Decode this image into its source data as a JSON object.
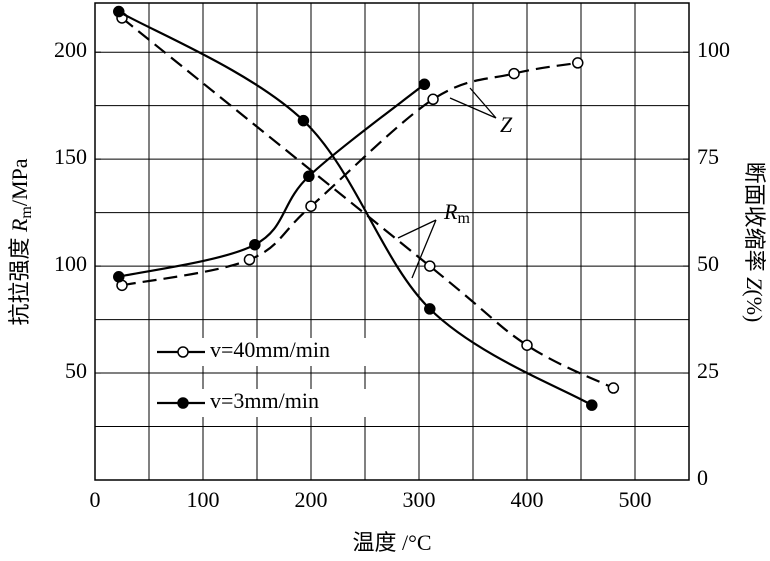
{
  "chart_data": {
    "type": "line",
    "xlabel": "温度 /°C",
    "ylabel_parts": [
      "抗拉强度 ",
      "R",
      "m",
      "/MPa"
    ],
    "y2label_parts": [
      "断面收缩率 ",
      "Z",
      "(%)"
    ],
    "xlim": [
      0,
      550
    ],
    "xticks": [
      0,
      100,
      200,
      300,
      400,
      500
    ],
    "ylim": [
      0,
      223
    ],
    "yticks": [
      50,
      100,
      150,
      200
    ],
    "y2lim": [
      0,
      111.5
    ],
    "y2ticks": [
      0,
      25,
      50,
      75,
      100
    ],
    "xgrid": [
      50,
      100,
      150,
      200,
      250,
      300,
      350,
      400,
      450,
      500
    ],
    "ygrid": [
      25,
      50,
      75,
      100,
      125,
      150,
      175,
      200
    ],
    "color": "#000000",
    "series": [
      {
        "name": "v=40mm/min",
        "filled": false,
        "dashed": true,
        "rm": {
          "x": [
            25,
            310,
            400,
            480
          ],
          "values": [
            216,
            100,
            63,
            43
          ]
        },
        "z": {
          "axis": "y2",
          "x": [
            25,
            143,
            200,
            313,
            388,
            447
          ],
          "values": [
            45.5,
            51.5,
            64,
            89,
            95,
            97.5
          ]
        }
      },
      {
        "name": "v=3mm/min",
        "filled": true,
        "dashed": false,
        "rm": {
          "x": [
            22,
            193,
            310,
            460
          ],
          "values": [
            219,
            168,
            80,
            35
          ]
        },
        "z": {
          "axis": "y2",
          "x": [
            22,
            148,
            198,
            305
          ],
          "values": [
            47.5,
            55,
            71,
            92.5
          ]
        }
      }
    ],
    "annotations": [
      {
        "text": "R",
        "sub": "m"
      },
      {
        "text": "Z"
      }
    ]
  }
}
